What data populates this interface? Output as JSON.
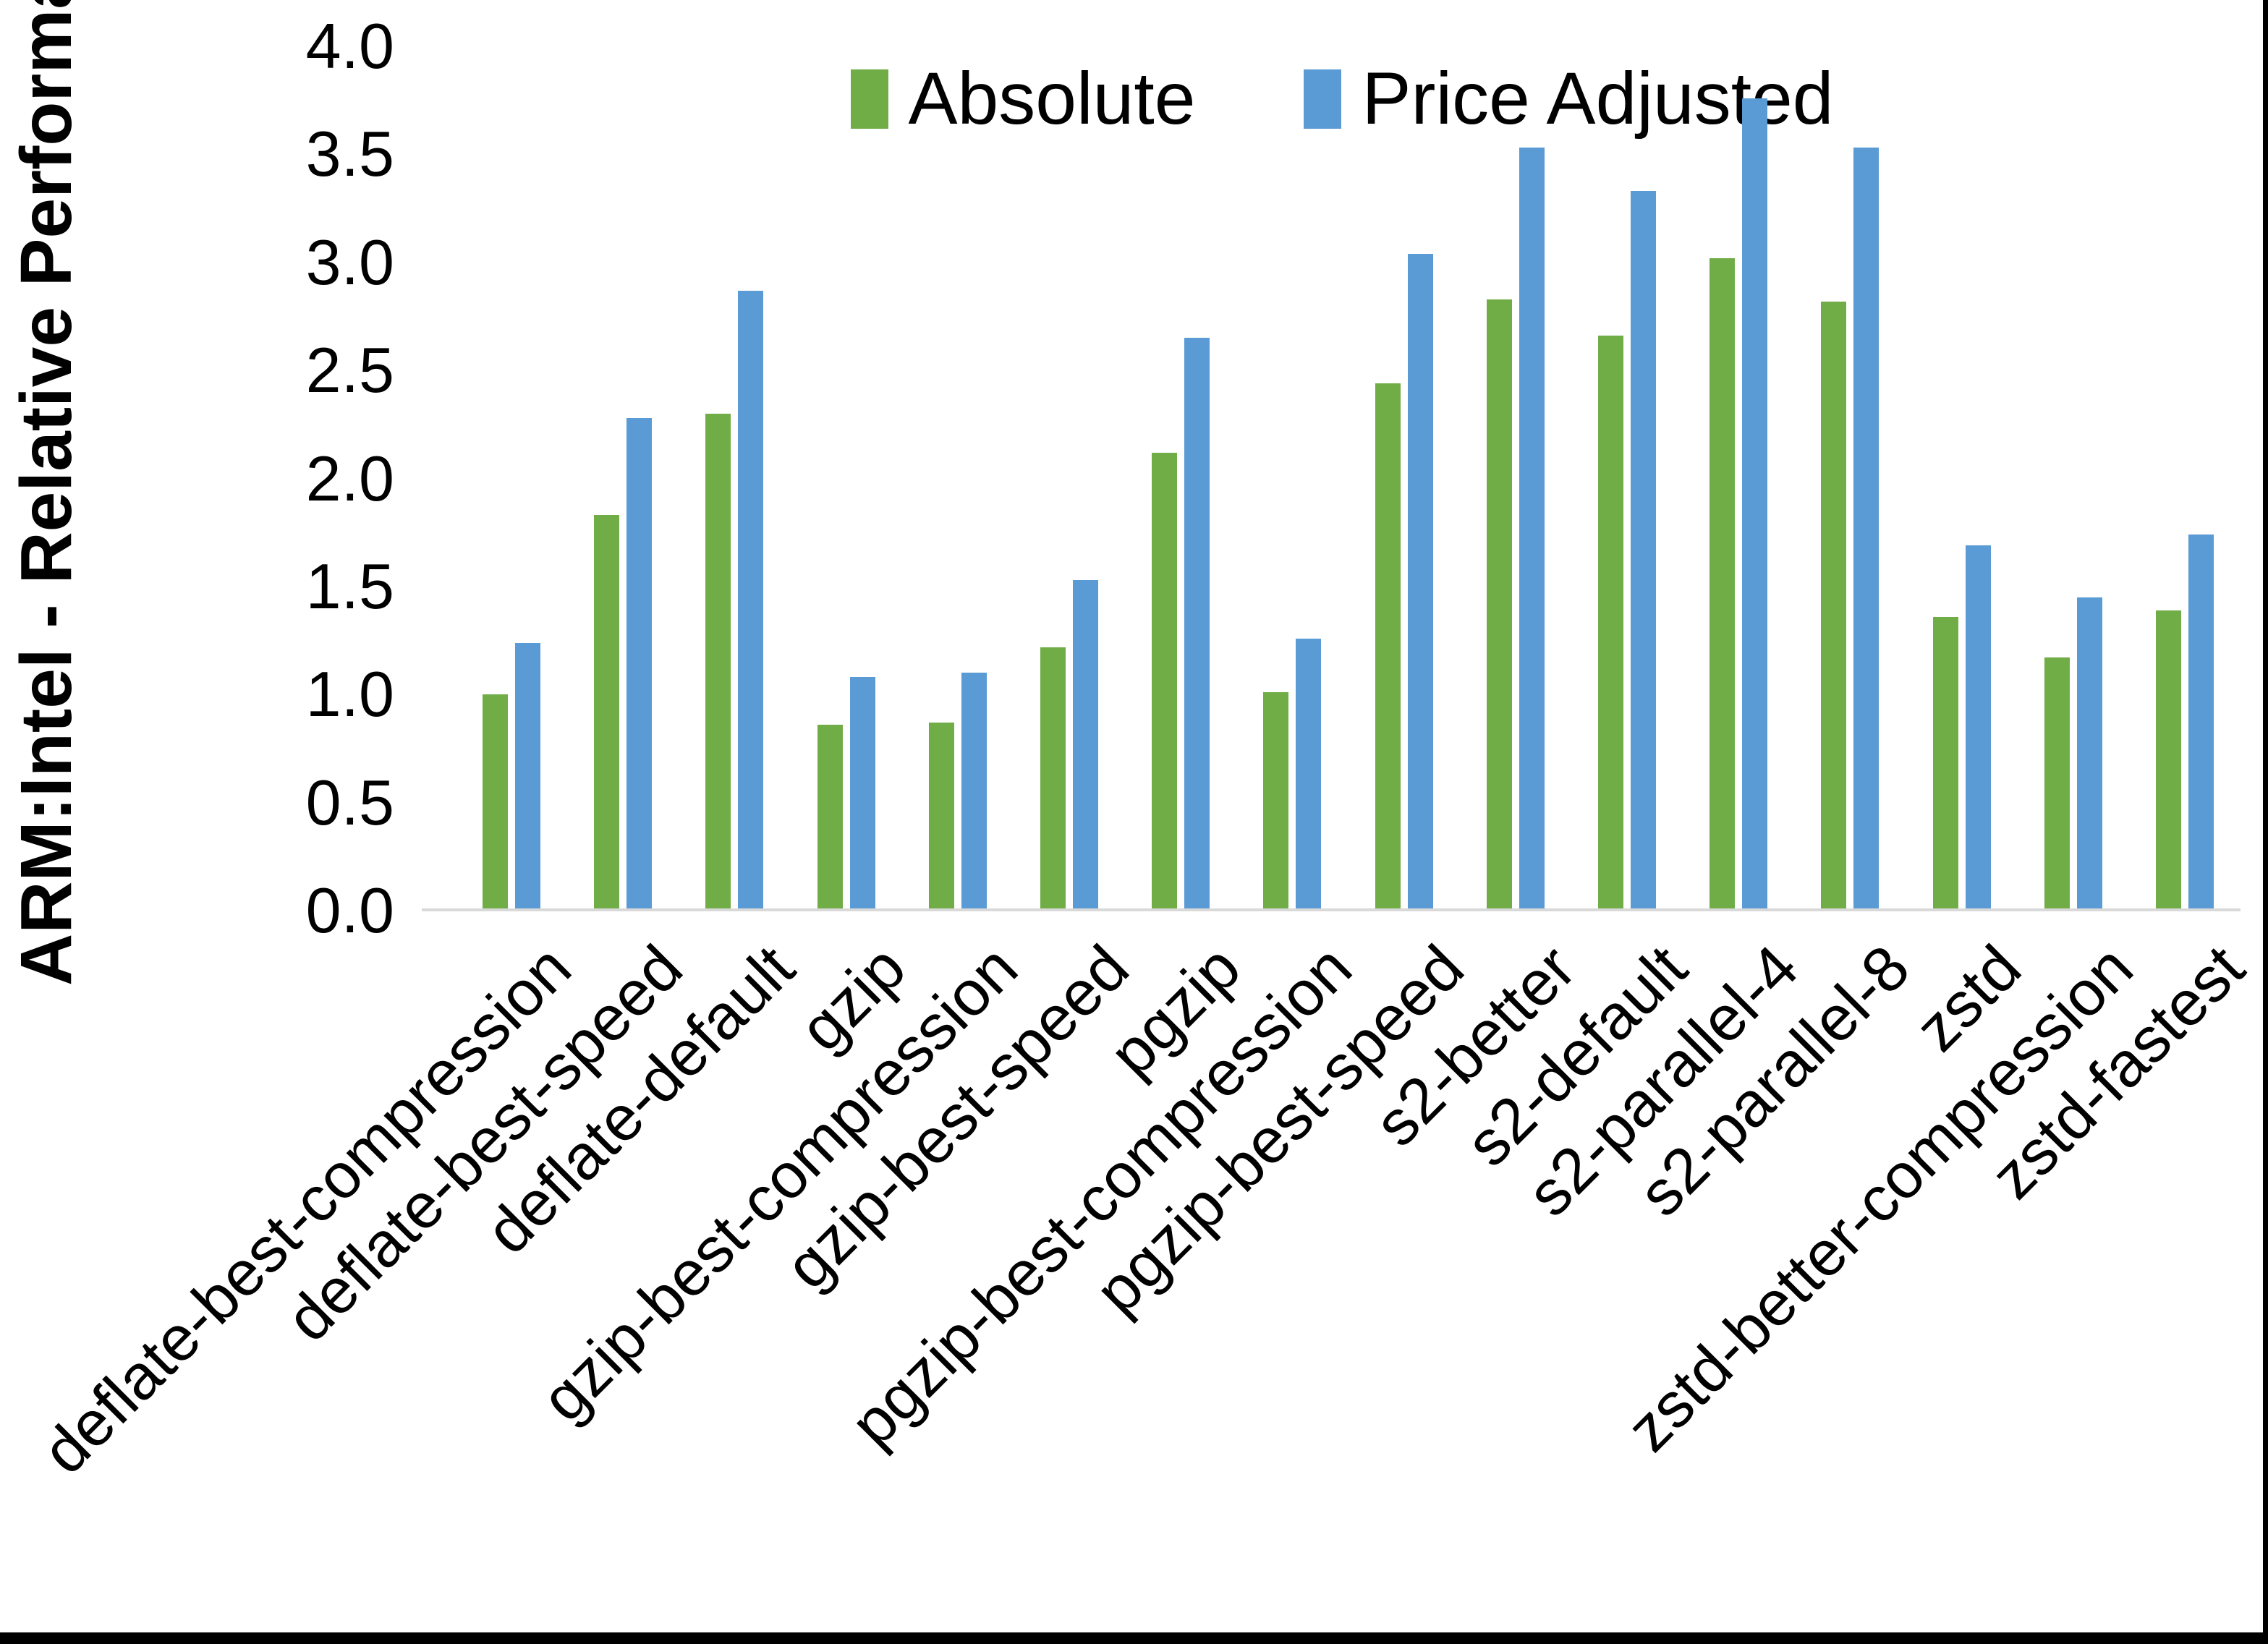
{
  "page": {
    "background": "#FFFFFF",
    "right_border_color": "#000000",
    "bottom_border_color": "#000000"
  },
  "chart_data": {
    "type": "bar",
    "title": "",
    "ylabel": "ARM:Intel - Relative Performance",
    "xlabel": "",
    "ylim": [
      0.0,
      4.0
    ],
    "ytick_step": 0.5,
    "ytick_labels": [
      "0.0",
      "0.5",
      "1.0",
      "1.5",
      "2.0",
      "2.5",
      "3.0",
      "3.5",
      "4.0"
    ],
    "grid": false,
    "axis_line_color": "#D9D9D9",
    "text_color": "#000000",
    "legend_position": "top-center",
    "categories": [
      "deflate-best-compression",
      "deflate-best-speed",
      "deflate-default",
      "gzip",
      "gzip-best-compression",
      "gzip-best-speed",
      "pgzip",
      "pgzip-best-compression",
      "pgzip-best-speed",
      "s2-better",
      "s2-default",
      "s2-parallel-4",
      "s2-parallel-8",
      "zstd",
      "zstd-better-compression",
      "zstd-fastest"
    ],
    "series": [
      {
        "name": "Absolute",
        "color": "#70AD47",
        "values": [
          1.0,
          1.83,
          2.3,
          0.86,
          0.87,
          1.22,
          2.12,
          1.01,
          2.44,
          2.83,
          2.66,
          3.02,
          2.82,
          1.36,
          1.17,
          1.39
        ]
      },
      {
        "name": "Price Adjusted",
        "color": "#5B9BD5",
        "values": [
          1.24,
          2.28,
          2.87,
          1.08,
          1.1,
          1.53,
          2.65,
          1.26,
          3.04,
          3.53,
          3.33,
          3.76,
          3.53,
          1.69,
          1.45,
          1.74
        ]
      }
    ]
  }
}
